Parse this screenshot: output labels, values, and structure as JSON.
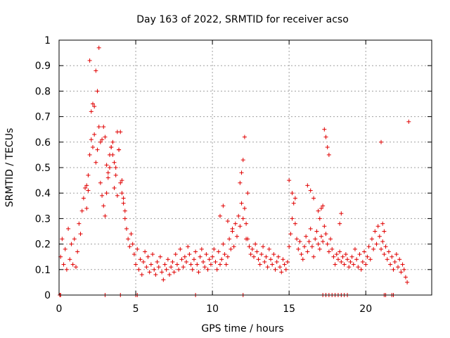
{
  "chart_data": {
    "type": "scatter",
    "title": "Day 163 of 2022, SRMTID for receiver acso",
    "xlabel": "GPS time / hours",
    "ylabel": "SRMTID / TECUs",
    "xlim": [
      0,
      24.3
    ],
    "ylim": [
      0,
      1
    ],
    "xticks": [
      0,
      5,
      10,
      15,
      20
    ],
    "xtick_labels": [
      "0",
      "5",
      "10",
      "15",
      "20"
    ],
    "yticks": [
      0,
      0.1,
      0.2,
      0.3,
      0.4,
      0.5,
      0.6,
      0.7,
      0.8,
      0.9,
      1
    ],
    "ytick_labels": [
      "0",
      "0.1",
      "0.2",
      "0.3",
      "0.4",
      "0.5",
      "0.6",
      "0.7",
      "0.8",
      "0.9",
      "1"
    ],
    "grid": true,
    "marker": "+",
    "color": "#e00000",
    "series": [
      {
        "name": "SRMTID",
        "x": [
          0.1,
          0.2,
          0.3,
          0.4,
          0.5,
          0.6,
          0.7,
          0.8,
          0.9,
          1.0,
          1.1,
          1.2,
          1.3,
          1.4,
          1.5,
          1.6,
          1.7,
          1.8,
          1.9,
          2.0,
          2.1,
          2.2,
          2.3,
          2.4,
          2.5,
          2.6,
          2.7,
          2.8,
          2.9,
          3.0,
          3.1,
          3.2,
          3.3,
          3.4,
          3.5,
          3.6,
          3.7,
          3.8,
          3.9,
          4.0,
          4.1,
          4.2,
          4.3,
          4.4,
          4.5,
          4.6,
          4.7,
          4.8,
          4.9,
          5.0,
          5.1,
          5.2,
          5.3,
          5.4,
          5.5,
          5.6,
          5.7,
          5.8,
          5.9,
          6.0,
          6.1,
          6.2,
          6.3,
          6.4,
          6.5,
          6.6,
          6.7,
          6.8,
          6.9,
          7.0,
          7.1,
          7.2,
          7.3,
          7.4,
          7.5,
          7.6,
          7.7,
          7.8,
          7.9,
          8.0,
          8.1,
          8.2,
          8.3,
          8.4,
          8.5,
          8.6,
          8.7,
          8.8,
          8.9,
          9.0,
          9.1,
          9.2,
          9.3,
          9.4,
          9.5,
          9.6,
          9.7,
          9.8,
          9.9,
          10.0,
          10.1,
          10.2,
          10.3,
          10.4,
          10.5,
          10.6,
          10.7,
          10.8,
          10.9,
          11.0,
          11.1,
          11.2,
          11.3,
          11.4,
          11.5,
          11.6,
          11.7,
          11.8,
          11.9,
          12.0,
          12.1,
          12.2,
          12.3,
          12.4,
          12.5,
          12.6,
          12.7,
          12.8,
          12.9,
          13.0,
          13.1,
          13.2,
          13.3,
          13.4,
          13.5,
          13.6,
          13.7,
          13.8,
          13.9,
          14.0,
          14.1,
          14.2,
          14.3,
          14.4,
          14.5,
          14.6,
          14.7,
          14.8,
          14.9,
          15.0,
          15.1,
          15.2,
          15.3,
          15.4,
          15.5,
          15.6,
          15.7,
          15.8,
          15.9,
          16.0,
          16.1,
          16.2,
          16.3,
          16.4,
          16.5,
          16.6,
          16.7,
          16.8,
          16.9,
          17.0,
          17.1,
          17.2,
          17.3,
          17.4,
          17.5,
          17.6,
          17.7,
          17.8,
          17.9,
          18.0,
          18.1,
          18.2,
          18.3,
          18.4,
          18.5,
          18.6,
          18.7,
          18.8,
          18.9,
          19.0,
          19.1,
          19.2,
          19.3,
          19.4,
          19.5,
          19.6,
          19.7,
          19.8,
          19.9,
          20.0,
          20.1,
          20.2,
          20.3,
          20.4,
          20.5,
          20.6,
          20.7,
          20.8,
          20.9,
          21.0,
          21.1,
          21.2,
          21.3,
          21.4,
          21.5,
          21.6,
          21.7,
          21.8,
          21.9,
          22.0,
          22.1,
          22.2,
          22.3,
          22.4,
          22.5,
          22.6,
          22.7,
          22.8,
          2.1,
          2.2,
          2.3,
          2.5,
          2.6,
          2.7,
          3.0,
          3.2,
          3.4,
          3.6,
          3.8,
          4.0,
          4.2,
          1.8,
          1.9,
          2.0,
          2.4,
          2.8,
          2.9,
          3.1,
          3.3,
          3.5,
          3.7,
          3.9,
          4.1,
          4.3,
          11.8,
          11.9,
          12.0,
          12.1,
          15.0,
          15.2,
          15.4,
          16.2,
          16.4,
          16.6,
          17.2,
          17.3,
          17.4,
          17.5,
          17.6,
          21.0,
          21.1,
          21.2,
          12.2,
          12.3,
          16.9,
          17.0,
          17.1,
          18.3,
          18.4,
          10.5,
          10.7,
          11.0,
          11.3
        ],
        "y": [
          0.15,
          0.22,
          0.12,
          0.18,
          0.1,
          0.26,
          0.14,
          0.2,
          0.12,
          0.22,
          0.11,
          0.17,
          0.28,
          0.24,
          0.33,
          0.38,
          0.42,
          0.34,
          0.47,
          0.55,
          0.61,
          0.58,
          0.74,
          0.52,
          0.57,
          0.66,
          0.44,
          0.39,
          0.35,
          0.31,
          0.4,
          0.46,
          0.5,
          0.58,
          0.55,
          0.42,
          0.47,
          0.39,
          0.57,
          0.64,
          0.45,
          0.38,
          0.33,
          0.26,
          0.22,
          0.19,
          0.24,
          0.2,
          0.16,
          0.12,
          0.18,
          0.1,
          0.14,
          0.08,
          0.13,
          0.17,
          0.11,
          0.15,
          0.09,
          0.12,
          0.16,
          0.1,
          0.08,
          0.13,
          0.11,
          0.15,
          0.09,
          0.06,
          0.12,
          0.1,
          0.14,
          0.08,
          0.11,
          0.13,
          0.09,
          0.16,
          0.12,
          0.1,
          0.18,
          0.14,
          0.11,
          0.15,
          0.13,
          0.19,
          0.16,
          0.12,
          0.1,
          0.14,
          0.17,
          0.12,
          0.09,
          0.15,
          0.18,
          0.13,
          0.11,
          0.16,
          0.1,
          0.14,
          0.12,
          0.15,
          0.18,
          0.13,
          0.1,
          0.17,
          0.12,
          0.14,
          0.2,
          0.16,
          0.12,
          0.15,
          0.22,
          0.18,
          0.25,
          0.19,
          0.28,
          0.23,
          0.31,
          0.27,
          0.36,
          0.3,
          0.34,
          0.28,
          0.22,
          0.19,
          0.16,
          0.18,
          0.15,
          0.2,
          0.17,
          0.14,
          0.12,
          0.16,
          0.19,
          0.13,
          0.15,
          0.11,
          0.18,
          0.14,
          0.12,
          0.16,
          0.1,
          0.13,
          0.15,
          0.11,
          0.09,
          0.14,
          0.12,
          0.1,
          0.13,
          0.19,
          0.24,
          0.3,
          0.36,
          0.28,
          0.22,
          0.18,
          0.21,
          0.16,
          0.14,
          0.19,
          0.23,
          0.17,
          0.21,
          0.26,
          0.19,
          0.15,
          0.22,
          0.25,
          0.2,
          0.18,
          0.23,
          0.21,
          0.27,
          0.24,
          0.2,
          0.17,
          0.22,
          0.18,
          0.15,
          0.12,
          0.16,
          0.14,
          0.17,
          0.13,
          0.15,
          0.12,
          0.16,
          0.14,
          0.11,
          0.13,
          0.15,
          0.12,
          0.18,
          0.14,
          0.11,
          0.16,
          0.1,
          0.13,
          0.17,
          0.12,
          0.15,
          0.19,
          0.14,
          0.22,
          0.18,
          0.25,
          0.2,
          0.27,
          0.23,
          0.18,
          0.21,
          0.16,
          0.19,
          0.14,
          0.17,
          0.12,
          0.15,
          0.1,
          0.13,
          0.16,
          0.11,
          0.14,
          0.09,
          0.12,
          0.1,
          0.07,
          0.05,
          0.68,
          0.72,
          0.75,
          0.63,
          0.8,
          0.97,
          0.6,
          0.62,
          0.48,
          0.58,
          0.52,
          0.64,
          0.44,
          0.36,
          0.43,
          0.41,
          0.92,
          0.88,
          0.61,
          0.66,
          0.51,
          0.55,
          0.6,
          0.5,
          0.57,
          0.4,
          0.3,
          0.44,
          0.48,
          0.53,
          0.62,
          0.45,
          0.4,
          0.38,
          0.43,
          0.41,
          0.38,
          0.35,
          0.65,
          0.62,
          0.58,
          0.55,
          0.6,
          0.28,
          0.25,
          0.22,
          0.4,
          0.33,
          0.3,
          0.34,
          0.28,
          0.32,
          0.31,
          0.35,
          0.29,
          0.26
        ],
        "near_zero_x": [
          0.05,
          0.1,
          3.0,
          4.0,
          5.0,
          5.1,
          8.9,
          12.0,
          17.2,
          17.4,
          17.6,
          17.8,
          18.0,
          18.2,
          18.4,
          18.6,
          18.8,
          21.2,
          21.3,
          21.7,
          21.8
        ]
      }
    ]
  }
}
